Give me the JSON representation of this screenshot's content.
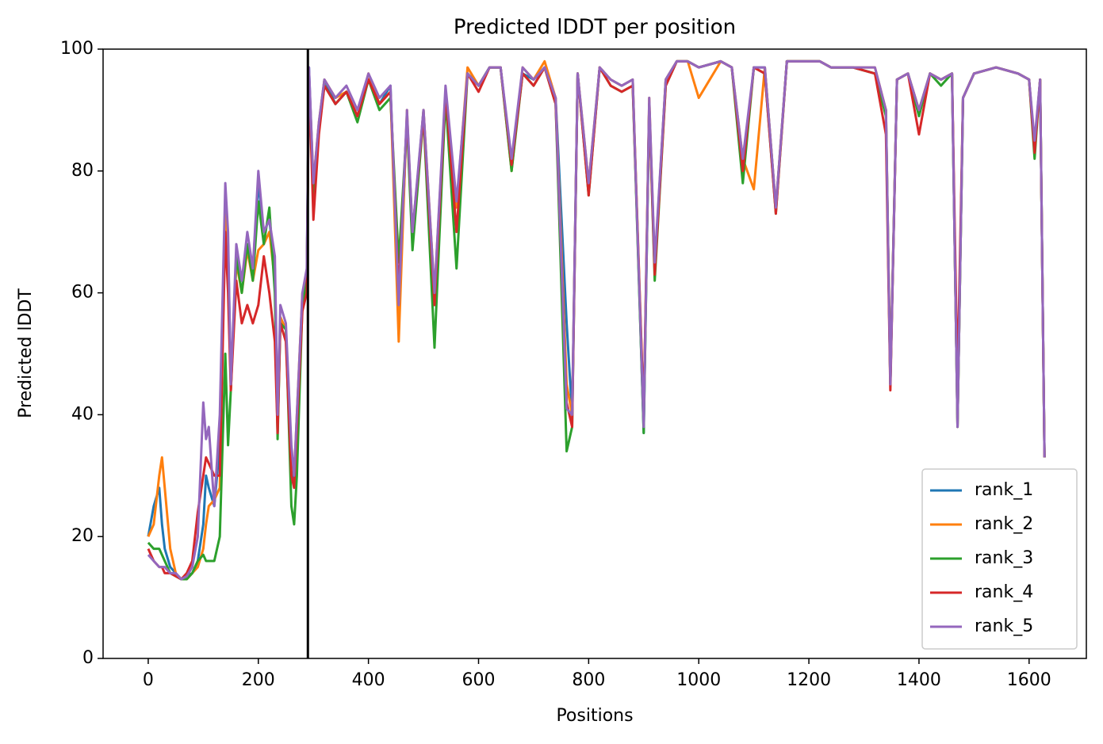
{
  "chart_data": {
    "type": "line",
    "title": "Predicted lDDT per position",
    "xlabel": "Positions",
    "ylabel": "Predicted lDDT",
    "xlim": [
      -82,
      1704
    ],
    "ylim": [
      0,
      100
    ],
    "xticks": [
      0,
      200,
      400,
      600,
      800,
      1000,
      1200,
      1400,
      1600
    ],
    "yticks": [
      0,
      20,
      40,
      60,
      80,
      100
    ],
    "vlines": [
      290
    ],
    "legend": "lower right",
    "x": [
      0,
      10,
      20,
      25,
      30,
      40,
      50,
      60,
      70,
      80,
      90,
      100,
      105,
      110,
      120,
      130,
      140,
      145,
      150,
      160,
      170,
      180,
      190,
      200,
      210,
      220,
      230,
      235,
      240,
      250,
      260,
      265,
      270,
      280,
      288,
      292,
      300,
      310,
      320,
      340,
      360,
      380,
      400,
      420,
      440,
      455,
      470,
      480,
      500,
      520,
      540,
      560,
      580,
      600,
      620,
      640,
      660,
      680,
      700,
      720,
      740,
      760,
      770,
      780,
      800,
      820,
      840,
      860,
      880,
      900,
      910,
      920,
      940,
      960,
      980,
      1000,
      1040,
      1060,
      1080,
      1100,
      1120,
      1140,
      1160,
      1200,
      1220,
      1240,
      1280,
      1320,
      1340,
      1348,
      1360,
      1380,
      1400,
      1420,
      1440,
      1460,
      1470,
      1480,
      1500,
      1540,
      1580,
      1600,
      1610,
      1620,
      1628
    ],
    "series": [
      {
        "name": "rank_1",
        "color": "#1f77b4",
        "values": [
          20,
          25,
          28,
          22,
          18,
          15,
          14,
          13,
          13.5,
          14,
          16,
          22,
          30,
          28,
          25,
          35,
          76,
          68,
          45,
          66,
          62,
          68,
          64,
          78,
          70,
          72,
          64,
          40,
          56,
          54,
          33,
          29,
          38,
          58,
          63,
          97,
          77,
          87,
          95,
          91,
          93,
          89,
          95,
          91,
          94,
          56,
          89,
          69,
          90,
          58,
          93,
          74,
          96,
          94,
          97,
          97,
          81,
          96,
          95,
          97,
          92,
          55,
          40,
          96,
          77,
          97,
          95,
          94,
          95,
          37,
          91,
          64,
          95,
          98,
          98,
          97,
          98,
          97,
          80,
          97,
          97,
          74,
          98,
          98,
          98,
          97,
          97,
          96,
          90,
          45,
          95,
          96,
          90,
          96,
          95,
          96,
          38,
          92,
          96,
          97,
          96,
          95,
          84,
          95,
          33
        ]
      },
      {
        "name": "rank_2",
        "color": "#ff7f0e",
        "values": [
          20,
          22,
          30,
          33,
          28,
          18,
          14,
          13,
          13,
          14,
          15,
          18,
          22,
          25,
          26,
          28,
          74,
          66,
          44,
          65,
          60,
          67,
          62,
          67,
          68,
          70,
          62,
          38,
          56,
          54,
          34,
          30,
          40,
          60,
          62,
          96,
          78,
          88,
          95,
          92,
          93,
          89,
          96,
          91,
          93,
          52,
          90,
          68,
          90,
          60,
          93,
          74,
          97,
          94,
          97,
          97,
          80,
          97,
          95,
          98,
          92,
          45,
          40,
          96,
          78,
          97,
          95,
          94,
          95,
          40,
          92,
          64,
          95,
          98,
          98,
          92,
          98,
          97,
          82,
          77,
          97,
          74,
          98,
          98,
          98,
          97,
          97,
          97,
          90,
          46,
          95,
          96,
          90,
          96,
          95,
          96,
          38,
          92,
          96,
          97,
          96,
          95,
          84,
          95,
          33
        ]
      },
      {
        "name": "rank_3",
        "color": "#2ca02c",
        "values": [
          19,
          18,
          18,
          17,
          16,
          14,
          13.5,
          13,
          13,
          14,
          16,
          17,
          16,
          16,
          16,
          20,
          50,
          35,
          44,
          66,
          60,
          68,
          62,
          75,
          68,
          74,
          60,
          36,
          55,
          54,
          25,
          22,
          30,
          58,
          62,
          96,
          76,
          87,
          94,
          91,
          93,
          88,
          95,
          90,
          92,
          65,
          88,
          67,
          89,
          51,
          92,
          64,
          96,
          94,
          97,
          97,
          80,
          96,
          94,
          97,
          91,
          34,
          38,
          96,
          76,
          97,
          94,
          93,
          94,
          37,
          91,
          62,
          94,
          98,
          98,
          97,
          98,
          97,
          78,
          97,
          96,
          73,
          98,
          98,
          98,
          97,
          97,
          96,
          89,
          45,
          95,
          96,
          89,
          96,
          94,
          96,
          38,
          92,
          96,
          97,
          96,
          95,
          82,
          95,
          33
        ]
      },
      {
        "name": "rank_4",
        "color": "#d62728",
        "values": [
          18,
          16,
          15,
          15,
          14,
          14,
          13.5,
          13,
          14,
          16,
          24,
          30,
          33,
          32,
          30,
          30,
          70,
          60,
          44,
          62,
          55,
          58,
          55,
          58,
          66,
          60,
          52,
          37,
          55,
          52,
          30,
          28,
          38,
          57,
          60,
          96,
          72,
          86,
          94,
          91,
          93,
          89,
          95,
          91,
          93,
          60,
          89,
          70,
          89,
          58,
          93,
          70,
          96,
          93,
          97,
          97,
          81,
          96,
          94,
          97,
          91,
          42,
          38,
          96,
          76,
          97,
          94,
          93,
          94,
          40,
          91,
          63,
          94,
          98,
          98,
          97,
          98,
          97,
          80,
          97,
          96,
          73,
          98,
          98,
          98,
          97,
          97,
          96,
          86,
          44,
          95,
          96,
          86,
          96,
          95,
          96,
          45,
          92,
          96,
          97,
          96,
          95,
          83,
          95,
          33
        ]
      },
      {
        "name": "rank_5",
        "color": "#9467bd",
        "values": [
          17,
          16,
          15,
          15,
          15,
          14,
          14,
          13,
          13.5,
          15,
          20,
          42,
          36,
          38,
          25,
          40,
          78,
          70,
          45,
          68,
          62,
          70,
          64,
          80,
          70,
          72,
          66,
          40,
          58,
          55,
          35,
          30,
          40,
          60,
          64,
          97,
          78,
          88,
          95,
          92,
          94,
          90,
          96,
          92,
          94,
          58,
          90,
          70,
          90,
          60,
          94,
          75,
          96,
          94,
          97,
          97,
          82,
          97,
          95,
          97,
          92,
          41,
          40,
          96,
          78,
          97,
          95,
          94,
          95,
          38,
          92,
          65,
          95,
          98,
          98,
          97,
          98,
          97,
          82,
          97,
          97,
          74,
          98,
          98,
          98,
          97,
          97,
          97,
          90,
          45,
          95,
          96,
          90,
          96,
          95,
          96,
          38,
          92,
          96,
          97,
          96,
          95,
          85,
          95,
          33
        ]
      }
    ]
  }
}
